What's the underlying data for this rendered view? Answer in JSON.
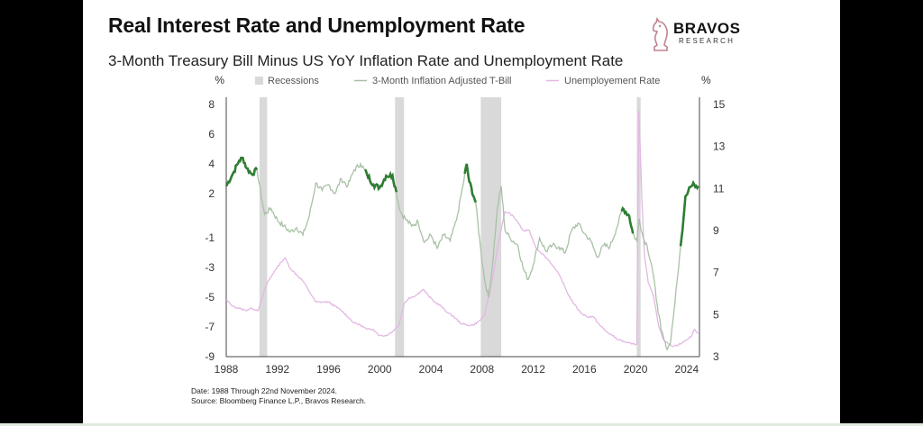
{
  "header": {
    "title": "Real Interest Rate and Unemployment Rate",
    "subtitle": "3-Month Treasury Bill Minus US YoY Inflation Rate and Unemployment Rate"
  },
  "logo": {
    "name": "BRAVOS",
    "sub": "RESEARCH",
    "color": "#c0828f"
  },
  "footnote": {
    "line1": "Date: 1988 Through 22nd November 2024.",
    "line2": "Source: Bloomberg Finance L.P., Bravos Research."
  },
  "colors": {
    "recession": "#d9d9d9",
    "tbill": "#a9c1a6",
    "tbill_highlight": "#2e7d32",
    "unemployment": "#e3b8e3",
    "axis": "#444444"
  },
  "chart_data": {
    "type": "line",
    "left_axis": {
      "unit": "%",
      "range": [
        -9,
        8
      ],
      "ticks": [
        8,
        6,
        4,
        2,
        -1,
        -3,
        -5,
        -7,
        -9
      ]
    },
    "right_axis": {
      "unit": "%",
      "range": [
        3,
        15
      ],
      "ticks": [
        15,
        13,
        11,
        9,
        7,
        5,
        3
      ]
    },
    "x_range": [
      1988,
      2025
    ],
    "x_ticks": [
      "1988",
      "1992",
      "1996",
      "2000",
      "2004",
      "2008",
      "2012",
      "2016",
      "2020",
      "2024"
    ],
    "legend": [
      "Recessions",
      "3-Month Inflation Adjusted T-Bill",
      "Unemployement Rate"
    ],
    "recessions": [
      [
        1990.6,
        1991.2
      ],
      [
        2001.2,
        2001.9
      ],
      [
        2007.9,
        2009.5
      ],
      [
        2020.1,
        2020.4
      ]
    ],
    "series": [
      {
        "name": "3-Month Inflation Adjusted T-Bill",
        "axis": "left",
        "points": [
          [
            1988.0,
            2.5
          ],
          [
            1988.5,
            3.3
          ],
          [
            1989.0,
            4.2
          ],
          [
            1989.3,
            4.4
          ],
          [
            1989.6,
            3.7
          ],
          [
            1990.0,
            3.3
          ],
          [
            1990.4,
            3.6
          ],
          [
            1990.8,
            1.5
          ],
          [
            1991.0,
            0.6
          ],
          [
            1991.5,
            1.0
          ],
          [
            1992.0,
            0.2
          ],
          [
            1992.5,
            -0.2
          ],
          [
            1993.0,
            -0.6
          ],
          [
            1993.5,
            -0.3
          ],
          [
            1994.0,
            -0.8
          ],
          [
            1994.5,
            0.5
          ],
          [
            1995.0,
            2.7
          ],
          [
            1995.5,
            2.2
          ],
          [
            1996.0,
            2.6
          ],
          [
            1996.5,
            2.0
          ],
          [
            1997.0,
            3.0
          ],
          [
            1997.5,
            2.5
          ],
          [
            1998.0,
            3.6
          ],
          [
            1998.5,
            4.0
          ],
          [
            1999.0,
            3.3
          ],
          [
            1999.5,
            2.6
          ],
          [
            2000.0,
            2.4
          ],
          [
            2000.5,
            3.2
          ],
          [
            2001.0,
            3.2
          ],
          [
            2001.3,
            2.1
          ],
          [
            2001.6,
            0.8
          ],
          [
            2002.0,
            0.3
          ],
          [
            2002.5,
            -0.2
          ],
          [
            2003.0,
            0.1
          ],
          [
            2003.5,
            -1.3
          ],
          [
            2004.0,
            -0.8
          ],
          [
            2004.5,
            -1.7
          ],
          [
            2005.0,
            -0.8
          ],
          [
            2005.5,
            -1.2
          ],
          [
            2006.0,
            0.2
          ],
          [
            2006.5,
            2.5
          ],
          [
            2006.8,
            4.0
          ],
          [
            2007.0,
            2.8
          ],
          [
            2007.5,
            1.4
          ],
          [
            2007.9,
            -1.8
          ],
          [
            2008.2,
            -3.8
          ],
          [
            2008.5,
            -5.0
          ],
          [
            2008.8,
            -3.0
          ],
          [
            2009.2,
            1.0
          ],
          [
            2009.5,
            2.5
          ],
          [
            2009.8,
            -0.5
          ],
          [
            2010.2,
            -1.0
          ],
          [
            2010.8,
            -1.5
          ],
          [
            2011.2,
            -3.0
          ],
          [
            2011.6,
            -3.8
          ],
          [
            2012.0,
            -2.8
          ],
          [
            2012.5,
            -1.0
          ],
          [
            2013.0,
            -1.9
          ],
          [
            2013.5,
            -1.5
          ],
          [
            2014.0,
            -1.6
          ],
          [
            2014.5,
            -2.0
          ],
          [
            2015.0,
            -0.5
          ],
          [
            2015.5,
            0.0
          ],
          [
            2016.0,
            -0.7
          ],
          [
            2016.5,
            -1.2
          ],
          [
            2017.0,
            -2.3
          ],
          [
            2017.5,
            -1.5
          ],
          [
            2018.0,
            -1.6
          ],
          [
            2018.5,
            -0.4
          ],
          [
            2019.0,
            1.0
          ],
          [
            2019.5,
            0.5
          ],
          [
            2019.8,
            -0.7
          ],
          [
            2020.1,
            -1.2
          ],
          [
            2020.3,
            0.3
          ],
          [
            2020.6,
            -1.0
          ],
          [
            2020.9,
            -1.5
          ],
          [
            2021.3,
            -3.0
          ],
          [
            2021.7,
            -5.5
          ],
          [
            2022.0,
            -7.2
          ],
          [
            2022.4,
            -8.4
          ],
          [
            2022.7,
            -8.2
          ],
          [
            2023.0,
            -6.0
          ],
          [
            2023.3,
            -3.5
          ],
          [
            2023.6,
            -1.0
          ],
          [
            2023.9,
            1.8
          ],
          [
            2024.2,
            2.4
          ],
          [
            2024.6,
            2.6
          ],
          [
            2024.9,
            2.5
          ]
        ]
      },
      {
        "name": "Unemployement Rate",
        "axis": "right",
        "points": [
          [
            1988.0,
            5.7
          ],
          [
            1988.5,
            5.4
          ],
          [
            1989.0,
            5.3
          ],
          [
            1989.5,
            5.2
          ],
          [
            1990.0,
            5.3
          ],
          [
            1990.5,
            5.2
          ],
          [
            1990.8,
            5.8
          ],
          [
            1991.2,
            6.5
          ],
          [
            1991.8,
            7.1
          ],
          [
            1992.3,
            7.5
          ],
          [
            1992.6,
            7.7
          ],
          [
            1993.0,
            7.2
          ],
          [
            1993.5,
            6.9
          ],
          [
            1994.0,
            6.6
          ],
          [
            1994.5,
            6.1
          ],
          [
            1995.0,
            5.6
          ],
          [
            1995.5,
            5.6
          ],
          [
            1996.0,
            5.6
          ],
          [
            1996.5,
            5.4
          ],
          [
            1997.0,
            5.2
          ],
          [
            1997.5,
            4.9
          ],
          [
            1998.0,
            4.6
          ],
          [
            1998.5,
            4.5
          ],
          [
            1999.0,
            4.3
          ],
          [
            1999.5,
            4.3
          ],
          [
            2000.0,
            4.0
          ],
          [
            2000.5,
            4.0
          ],
          [
            2001.0,
            4.2
          ],
          [
            2001.5,
            4.5
          ],
          [
            2001.9,
            5.5
          ],
          [
            2002.3,
            5.8
          ],
          [
            2002.8,
            5.9
          ],
          [
            2003.4,
            6.2
          ],
          [
            2003.8,
            5.9
          ],
          [
            2004.3,
            5.6
          ],
          [
            2004.8,
            5.4
          ],
          [
            2005.3,
            5.1
          ],
          [
            2005.8,
            4.9
          ],
          [
            2006.3,
            4.6
          ],
          [
            2006.8,
            4.5
          ],
          [
            2007.3,
            4.5
          ],
          [
            2007.8,
            4.7
          ],
          [
            2008.2,
            5.0
          ],
          [
            2008.6,
            6.0
          ],
          [
            2008.9,
            7.0
          ],
          [
            2009.3,
            8.5
          ],
          [
            2009.8,
            9.9
          ],
          [
            2010.2,
            9.8
          ],
          [
            2010.7,
            9.5
          ],
          [
            2011.2,
            9.0
          ],
          [
            2011.7,
            9.0
          ],
          [
            2012.2,
            8.2
          ],
          [
            2012.7,
            7.9
          ],
          [
            2013.2,
            7.6
          ],
          [
            2013.7,
            7.2
          ],
          [
            2014.2,
            6.7
          ],
          [
            2014.7,
            6.0
          ],
          [
            2015.2,
            5.5
          ],
          [
            2015.7,
            5.1
          ],
          [
            2016.2,
            4.9
          ],
          [
            2016.7,
            4.9
          ],
          [
            2017.2,
            4.5
          ],
          [
            2017.7,
            4.2
          ],
          [
            2018.2,
            4.0
          ],
          [
            2018.7,
            3.8
          ],
          [
            2019.2,
            3.7
          ],
          [
            2019.7,
            3.6
          ],
          [
            2020.1,
            3.6
          ],
          [
            2020.25,
            14.7
          ],
          [
            2020.35,
            13.2
          ],
          [
            2020.5,
            10.5
          ],
          [
            2020.7,
            7.8
          ],
          [
            2021.0,
            6.5
          ],
          [
            2021.4,
            5.9
          ],
          [
            2021.8,
            4.5
          ],
          [
            2022.2,
            3.8
          ],
          [
            2022.6,
            3.6
          ],
          [
            2023.0,
            3.5
          ],
          [
            2023.5,
            3.6
          ],
          [
            2024.0,
            3.8
          ],
          [
            2024.4,
            4.0
          ],
          [
            2024.6,
            4.3
          ],
          [
            2024.9,
            4.1
          ]
        ]
      }
    ],
    "highlighted_tbill_periods": [
      [
        1988.0,
        1990.4
      ],
      [
        1998.8,
        2001.3
      ],
      [
        2006.6,
        2007.5
      ],
      [
        2018.9,
        2019.8
      ],
      [
        2023.5,
        2024.9
      ]
    ]
  }
}
